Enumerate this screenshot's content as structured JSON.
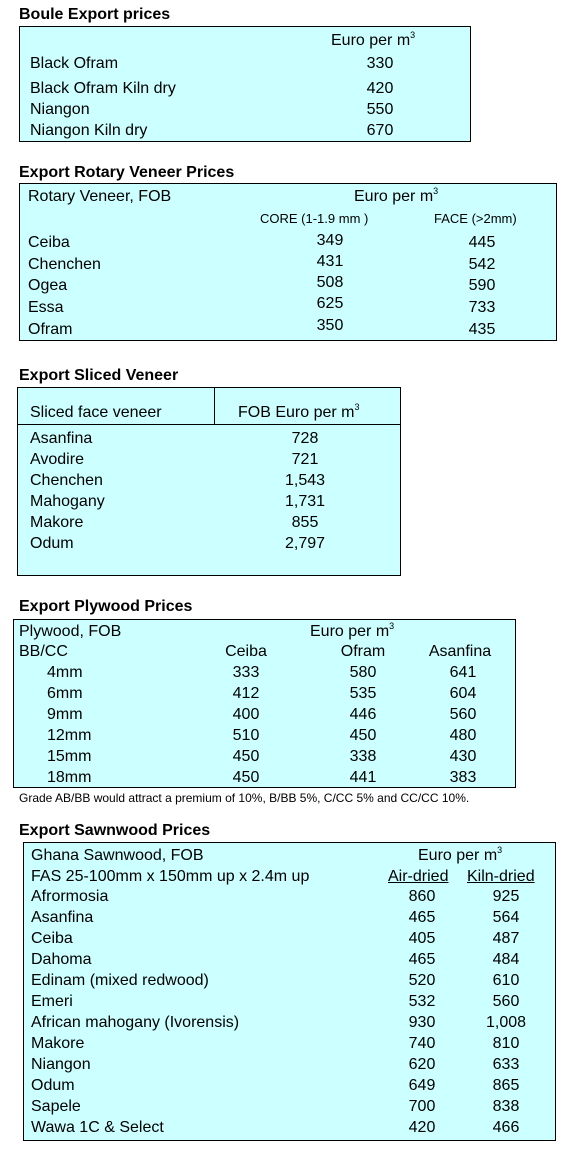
{
  "boule": {
    "title": "Boule Export prices",
    "header": "Euro per m",
    "sup": "3",
    "rows": [
      {
        "name": "Black Ofram",
        "value": "330"
      },
      {
        "name": "Black Ofram  Kiln dry",
        "value": "420"
      },
      {
        "name": "Niangon",
        "value": "550"
      },
      {
        "name": "Niangon Kiln dry",
        "value": "670"
      }
    ]
  },
  "rotary": {
    "title": "Export Rotary Veneer Prices",
    "label": "Rotary Veneer,  FOB",
    "header": "Euro  per m",
    "sup": "3",
    "col_core": "CORE (1-1.9 mm )",
    "col_face": "FACE (>2mm)",
    "rows": [
      {
        "name": "Ceiba",
        "core": "349",
        "face": "445"
      },
      {
        "name": "Chenchen",
        "core": "431",
        "face": "542"
      },
      {
        "name": "Ogea",
        "core": "508",
        "face": "590"
      },
      {
        "name": "Essa",
        "core": "625",
        "face": "733"
      },
      {
        "name": "Ofram",
        "core": "350",
        "face": "435"
      }
    ]
  },
  "sliced": {
    "title": "Export Sliced Veneer",
    "col_name": "Sliced face veneer",
    "col_price": "FOB Euro per m",
    "sup": "3",
    "rows": [
      {
        "name": "Asanfina",
        "value": "728"
      },
      {
        "name": "Avodire",
        "value": "721"
      },
      {
        "name": "Chenchen",
        "value": "1,543"
      },
      {
        "name": "Mahogany",
        "value": "1,731"
      },
      {
        "name": "Makore",
        "value": "855"
      },
      {
        "name": "Odum",
        "value": "2,797"
      }
    ]
  },
  "plywood": {
    "title": "Export Plywood Prices",
    "label": "Plywood, FOB",
    "header": "Euro per m",
    "sup": "3",
    "grade": "BB/CC",
    "col1": "Ceiba",
    "col2": "Ofram",
    "col3": "Asanfina",
    "rows": [
      {
        "size": "4mm",
        "ceiba": "333",
        "ofram": "580",
        "asanfina": "641"
      },
      {
        "size": "6mm",
        "ceiba": "412",
        "ofram": "535",
        "asanfina": "604"
      },
      {
        "size": "9mm",
        "ceiba": "400",
        "ofram": "446",
        "asanfina": "560"
      },
      {
        "size": "12mm",
        "ceiba": "510",
        "ofram": "450",
        "asanfina": "480"
      },
      {
        "size": "15mm",
        "ceiba": "450",
        "ofram": "338",
        "asanfina": "430"
      },
      {
        "size": "18mm",
        "ceiba": "450",
        "ofram": "441",
        "asanfina": "383"
      }
    ],
    "note": "Grade AB/BB would attract a premium of 10%, B/BB 5%, C/CC 5% and CC/CC 10%."
  },
  "sawnwood": {
    "title": "Export Sawnwood Prices",
    "label": "Ghana Sawnwood, FOB",
    "header": "Euro per m",
    "sup": "3",
    "spec": "FAS 25-100mm x 150mm up x 2.4m up",
    "col_air": "Air-dried",
    "col_kiln": "Kiln-dried",
    "rows": [
      {
        "name": "Afrormosia",
        "air": "860",
        "kiln": "925"
      },
      {
        "name": "Asanfina",
        "air": "465",
        "kiln": "564"
      },
      {
        "name": "Ceiba",
        "air": "405",
        "kiln": "487"
      },
      {
        "name": "Dahoma",
        "air": "465",
        "kiln": "484"
      },
      {
        "name": "Edinam (mixed redwood)",
        "air": "520",
        "kiln": "610"
      },
      {
        "name": "Emeri",
        "air": "532",
        "kiln": "560"
      },
      {
        "name": "African mahogany (Ivorensis)",
        "air": "930",
        "kiln": "1,008"
      },
      {
        "name": "Makore",
        "air": "740",
        "kiln": "810"
      },
      {
        "name": "Niangon",
        "air": "620",
        "kiln": "633"
      },
      {
        "name": "Odum",
        "air": "649",
        "kiln": "865"
      },
      {
        "name": "Sapele",
        "air": "700",
        "kiln": "838"
      },
      {
        "name": "Wawa 1C & Select",
        "air": "420",
        "kiln": "466"
      }
    ]
  }
}
